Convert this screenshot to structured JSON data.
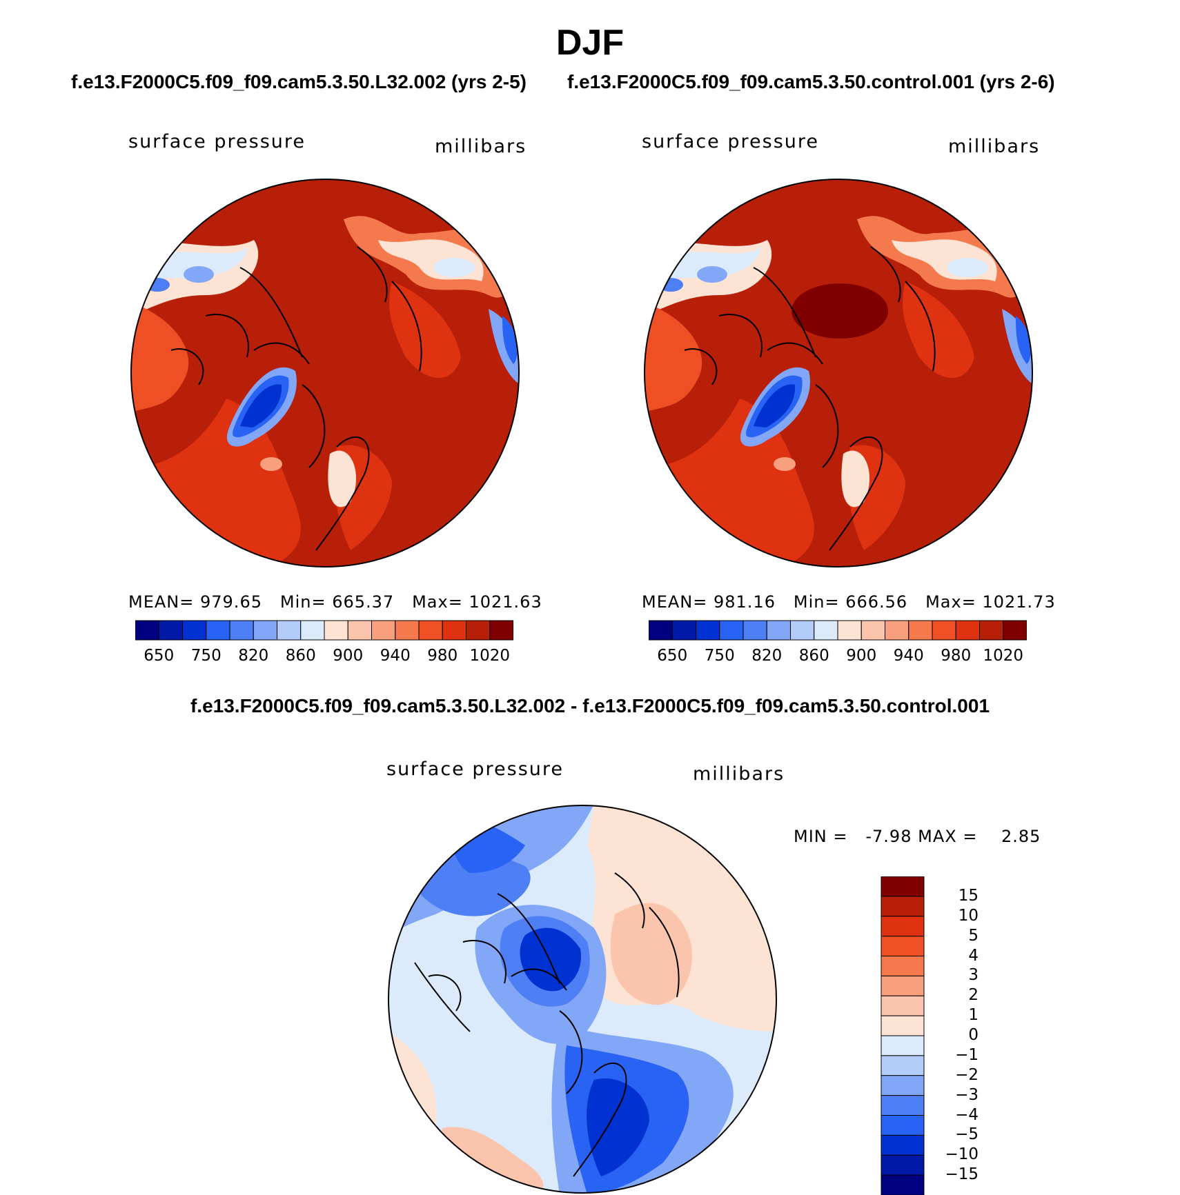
{
  "figure_title": "DJF",
  "chart_data": [
    {
      "type": "heatmap",
      "title": "f.e13.F2000C5.f09_f09.cam5.3.50.L32.002 (yrs 2-5)",
      "variable": "surface pressure",
      "units": "millibars",
      "projection": "north polar stereographic",
      "stats": {
        "mean_label": "MEAN=",
        "mean": "979.65",
        "min_label": "Min=",
        "min": "665.37",
        "max_label": "Max=",
        "max": "1021.63"
      },
      "colorbar": {
        "levels": [
          650,
          700,
          750,
          800,
          820,
          840,
          860,
          880,
          900,
          920,
          940,
          960,
          980,
          1000,
          1020
        ],
        "tick_labels": [
          "650",
          "750",
          "820",
          "860",
          "900",
          "940",
          "980",
          "1020"
        ],
        "colors": [
          "#000080",
          "#0019a6",
          "#0032d2",
          "#2863f4",
          "#4f7ff5",
          "#83a7f7",
          "#b3ccfa",
          "#dcebfc",
          "#fde3d3",
          "#fbc5ad",
          "#f8a07d",
          "#f47a4e",
          "#ee4f24",
          "#df3211",
          "#b81f09",
          "#800000"
        ]
      }
    },
    {
      "type": "heatmap",
      "title": "f.e13.F2000C5.f09_f09.cam5.3.50.control.001 (yrs 2-6)",
      "variable": "surface pressure",
      "units": "millibars",
      "projection": "north polar stereographic",
      "stats": {
        "mean_label": "MEAN=",
        "mean": "981.16",
        "min_label": "Min=",
        "min": "666.56",
        "max_label": "Max=",
        "max": "1021.73"
      },
      "colorbar": {
        "levels": [
          650,
          700,
          750,
          800,
          820,
          840,
          860,
          880,
          900,
          920,
          940,
          960,
          980,
          1000,
          1020
        ],
        "tick_labels": [
          "650",
          "750",
          "820",
          "860",
          "900",
          "940",
          "980",
          "1020"
        ],
        "colors": [
          "#000080",
          "#0019a6",
          "#0032d2",
          "#2863f4",
          "#4f7ff5",
          "#83a7f7",
          "#b3ccfa",
          "#dcebfc",
          "#fde3d3",
          "#fbc5ad",
          "#f8a07d",
          "#f47a4e",
          "#ee4f24",
          "#df3211",
          "#b81f09",
          "#800000"
        ]
      }
    },
    {
      "type": "heatmap",
      "title": "f.e13.F2000C5.f09_f09.cam5.3.50.L32.002 - f.e13.F2000C5.f09_f09.cam5.3.50.control.001",
      "variable": "surface pressure",
      "units": "millibars",
      "projection": "north polar stereographic",
      "stats": {
        "min_label": "MIN =",
        "min": "-7.98",
        "max_label": "MAX =",
        "max": "2.85"
      },
      "colorbar": {
        "orientation": "vertical",
        "tick_labels": [
          "15",
          "10",
          "5",
          "4",
          "3",
          "2",
          "1",
          "0",
          "−1",
          "−2",
          "−3",
          "−4",
          "−5",
          "−10",
          "−15"
        ],
        "colors": [
          "#800000",
          "#b81f09",
          "#df3211",
          "#ee4f24",
          "#f47a4e",
          "#f8a07d",
          "#fbc5ad",
          "#fde3d3",
          "#dcebfc",
          "#b3ccfa",
          "#83a7f7",
          "#4f7ff5",
          "#2863f4",
          "#0032d2",
          "#0019a6",
          "#000080"
        ]
      }
    }
  ]
}
